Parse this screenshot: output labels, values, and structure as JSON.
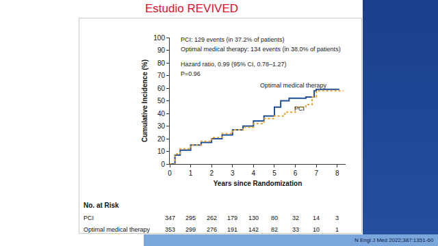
{
  "chart_data": {
    "type": "line",
    "title": "Estudio REVIVED",
    "x_label": "Years since Randomization",
    "y_label": "Cumulative Incidence (%)",
    "xlim": [
      0,
      8.4
    ],
    "xticks": [
      0,
      1,
      2,
      3,
      4,
      5,
      6,
      7,
      8
    ],
    "ylim": [
      0,
      100
    ],
    "yticks": [
      0,
      10,
      20,
      30,
      40,
      50,
      60,
      70,
      80,
      90,
      100
    ],
    "grid": false,
    "annotations": [
      "PCI: 129 events (in 37.2% of patients)",
      "Optimal medical therapy: 134 events (in 38.0% of patients)",
      "Hazard ratio, 0.99 (95% CI, 0.78–1.27)",
      "P=0.96"
    ],
    "series": [
      {
        "name": "Optimal medical therapy",
        "color": "#1f4e9c",
        "line_style": "solid",
        "x": [
          0,
          0.25,
          0.5,
          1,
          1.5,
          2,
          2.5,
          3,
          3.5,
          4,
          4.5,
          5,
          5.3,
          5.7,
          6,
          6.5,
          6.9,
          7,
          8.1
        ],
        "values": [
          0,
          7,
          11,
          15,
          17,
          20,
          23,
          27,
          30,
          34,
          38,
          45,
          50,
          52,
          52,
          53,
          58,
          59,
          59
        ]
      },
      {
        "name": "PCI",
        "color": "#e8a020",
        "line_style": "dotted",
        "x": [
          0,
          0.25,
          0.5,
          1,
          1.5,
          2,
          2.5,
          3,
          3.5,
          4,
          4.5,
          5,
          5.5,
          6,
          6.5,
          6.8,
          7,
          8.3
        ],
        "values": [
          0,
          8,
          12,
          15,
          18,
          21,
          24,
          27,
          29,
          32,
          36,
          38,
          41,
          45,
          47,
          53,
          58,
          58
        ]
      }
    ],
    "risk_table": {
      "title": "No. at Risk",
      "times": [
        0,
        1,
        2,
        3,
        4,
        5,
        6,
        7,
        8
      ],
      "rows": [
        {
          "name": "PCI",
          "values": [
            347,
            295,
            262,
            179,
            130,
            80,
            32,
            14,
            3
          ]
        },
        {
          "name": "Optimal medical therapy",
          "values": [
            353,
            299,
            276,
            191,
            142,
            82,
            33,
            10,
            1
          ]
        }
      ]
    },
    "source": "N Engl J Med 2022;387:1351-60"
  }
}
